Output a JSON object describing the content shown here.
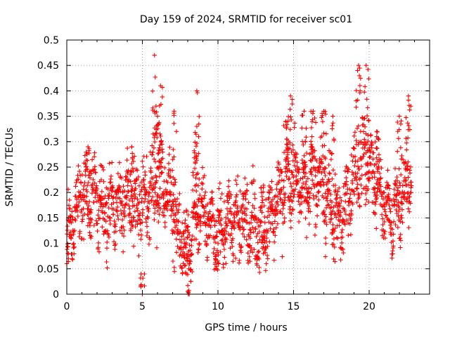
{
  "chart_data": {
    "type": "scatter",
    "title": "Day 159 of 2024, SRMTID for receiver sc01",
    "xlabel": "GPS time / hours",
    "ylabel": "SRMTID / TECUs",
    "xlim": [
      0,
      24
    ],
    "ylim": [
      0,
      0.5
    ],
    "xticks": [
      0,
      5,
      10,
      15,
      20
    ],
    "yticks": [
      0,
      0.05,
      0.1,
      0.15,
      0.2,
      0.25,
      0.3,
      0.35,
      0.4,
      0.45,
      0.5
    ],
    "grid": true,
    "marker": "plus",
    "color": "#ff0000",
    "series": [
      {
        "name": "SRMTID",
        "profile": [
          {
            "x": 0.0,
            "y": 0.09
          },
          {
            "x": 0.5,
            "y": 0.14
          },
          {
            "x": 1.0,
            "y": 0.2
          },
          {
            "x": 1.5,
            "y": 0.19
          },
          {
            "x": 2.0,
            "y": 0.17
          },
          {
            "x": 2.5,
            "y": 0.16
          },
          {
            "x": 3.0,
            "y": 0.17
          },
          {
            "x": 3.5,
            "y": 0.18
          },
          {
            "x": 4.0,
            "y": 0.19
          },
          {
            "x": 4.5,
            "y": 0.17
          },
          {
            "x": 5.0,
            "y": 0.18
          },
          {
            "x": 5.5,
            "y": 0.2
          },
          {
            "x": 6.0,
            "y": 0.22
          },
          {
            "x": 6.5,
            "y": 0.2
          },
          {
            "x": 7.0,
            "y": 0.17
          },
          {
            "x": 7.5,
            "y": 0.1
          },
          {
            "x": 8.0,
            "y": 0.09
          },
          {
            "x": 8.5,
            "y": 0.15
          },
          {
            "x": 9.0,
            "y": 0.17
          },
          {
            "x": 9.5,
            "y": 0.14
          },
          {
            "x": 10.0,
            "y": 0.1
          },
          {
            "x": 10.5,
            "y": 0.14
          },
          {
            "x": 11.0,
            "y": 0.15
          },
          {
            "x": 11.5,
            "y": 0.14
          },
          {
            "x": 12.0,
            "y": 0.14
          },
          {
            "x": 12.5,
            "y": 0.13
          },
          {
            "x": 13.0,
            "y": 0.14
          },
          {
            "x": 13.5,
            "y": 0.15
          },
          {
            "x": 14.0,
            "y": 0.2
          },
          {
            "x": 14.5,
            "y": 0.22
          },
          {
            "x": 15.0,
            "y": 0.22
          },
          {
            "x": 15.5,
            "y": 0.21
          },
          {
            "x": 16.0,
            "y": 0.22
          },
          {
            "x": 16.5,
            "y": 0.22
          },
          {
            "x": 17.0,
            "y": 0.2
          },
          {
            "x": 17.5,
            "y": 0.16
          },
          {
            "x": 18.0,
            "y": 0.14
          },
          {
            "x": 18.5,
            "y": 0.18
          },
          {
            "x": 19.0,
            "y": 0.23
          },
          {
            "x": 19.5,
            "y": 0.27
          },
          {
            "x": 20.0,
            "y": 0.26
          },
          {
            "x": 20.5,
            "y": 0.22
          },
          {
            "x": 21.0,
            "y": 0.17
          },
          {
            "x": 21.5,
            "y": 0.15
          },
          {
            "x": 22.0,
            "y": 0.16
          },
          {
            "x": 22.5,
            "y": 0.22
          },
          {
            "x": 22.8,
            "y": 0.21
          }
        ],
        "peaks": [
          {
            "x": 1.4,
            "y": 0.29
          },
          {
            "x": 4.3,
            "y": 0.29
          },
          {
            "x": 5.8,
            "y": 0.47
          },
          {
            "x": 6.2,
            "y": 0.41
          },
          {
            "x": 6.0,
            "y": 0.35
          },
          {
            "x": 7.1,
            "y": 0.36
          },
          {
            "x": 8.6,
            "y": 0.4
          },
          {
            "x": 8.6,
            "y": 0.33
          },
          {
            "x": 14.8,
            "y": 0.39
          },
          {
            "x": 14.5,
            "y": 0.34
          },
          {
            "x": 15.7,
            "y": 0.36
          },
          {
            "x": 16.3,
            "y": 0.36
          },
          {
            "x": 17.0,
            "y": 0.36
          },
          {
            "x": 17.6,
            "y": 0.35
          },
          {
            "x": 19.3,
            "y": 0.45
          },
          {
            "x": 19.8,
            "y": 0.45
          },
          {
            "x": 20.5,
            "y": 0.32
          },
          {
            "x": 22.0,
            "y": 0.35
          },
          {
            "x": 22.6,
            "y": 0.39
          }
        ],
        "dips": [
          {
            "x": 0.0,
            "y": 0.06
          },
          {
            "x": 5.0,
            "y": 0.0
          },
          {
            "x": 7.9,
            "y": 0.04
          },
          {
            "x": 8.1,
            "y": 0.0
          },
          {
            "x": 9.9,
            "y": 0.05
          },
          {
            "x": 13.0,
            "y": 0.08
          }
        ]
      }
    ]
  }
}
